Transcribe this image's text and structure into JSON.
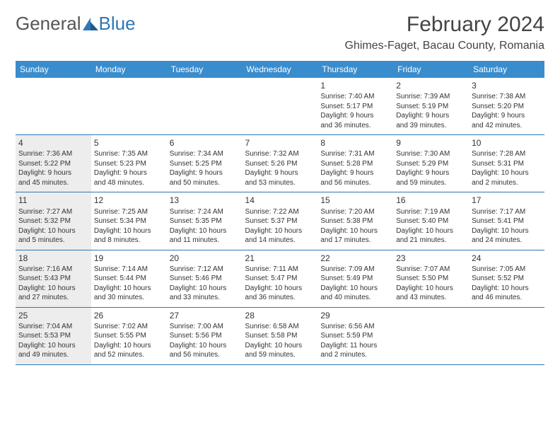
{
  "header": {
    "logo_general": "General",
    "logo_blue": "Blue",
    "month_title": "February 2024",
    "location": "Ghimes-Faget, Bacau County, Romania"
  },
  "colors": {
    "header_bg": "#3a8dcd",
    "border": "#2e77b8",
    "shaded": "#ededed",
    "text": "#333333"
  },
  "day_headers": [
    "Sunday",
    "Monday",
    "Tuesday",
    "Wednesday",
    "Thursday",
    "Friday",
    "Saturday"
  ],
  "weeks": [
    [
      null,
      null,
      null,
      null,
      {
        "num": "1",
        "sunrise": "Sunrise: 7:40 AM",
        "sunset": "Sunset: 5:17 PM",
        "day1": "Daylight: 9 hours",
        "day2": "and 36 minutes."
      },
      {
        "num": "2",
        "sunrise": "Sunrise: 7:39 AM",
        "sunset": "Sunset: 5:19 PM",
        "day1": "Daylight: 9 hours",
        "day2": "and 39 minutes."
      },
      {
        "num": "3",
        "sunrise": "Sunrise: 7:38 AM",
        "sunset": "Sunset: 5:20 PM",
        "day1": "Daylight: 9 hours",
        "day2": "and 42 minutes."
      }
    ],
    [
      {
        "num": "4",
        "sunrise": "Sunrise: 7:36 AM",
        "sunset": "Sunset: 5:22 PM",
        "day1": "Daylight: 9 hours",
        "day2": "and 45 minutes.",
        "shaded": true
      },
      {
        "num": "5",
        "sunrise": "Sunrise: 7:35 AM",
        "sunset": "Sunset: 5:23 PM",
        "day1": "Daylight: 9 hours",
        "day2": "and 48 minutes."
      },
      {
        "num": "6",
        "sunrise": "Sunrise: 7:34 AM",
        "sunset": "Sunset: 5:25 PM",
        "day1": "Daylight: 9 hours",
        "day2": "and 50 minutes."
      },
      {
        "num": "7",
        "sunrise": "Sunrise: 7:32 AM",
        "sunset": "Sunset: 5:26 PM",
        "day1": "Daylight: 9 hours",
        "day2": "and 53 minutes."
      },
      {
        "num": "8",
        "sunrise": "Sunrise: 7:31 AM",
        "sunset": "Sunset: 5:28 PM",
        "day1": "Daylight: 9 hours",
        "day2": "and 56 minutes."
      },
      {
        "num": "9",
        "sunrise": "Sunrise: 7:30 AM",
        "sunset": "Sunset: 5:29 PM",
        "day1": "Daylight: 9 hours",
        "day2": "and 59 minutes."
      },
      {
        "num": "10",
        "sunrise": "Sunrise: 7:28 AM",
        "sunset": "Sunset: 5:31 PM",
        "day1": "Daylight: 10 hours",
        "day2": "and 2 minutes."
      }
    ],
    [
      {
        "num": "11",
        "sunrise": "Sunrise: 7:27 AM",
        "sunset": "Sunset: 5:32 PM",
        "day1": "Daylight: 10 hours",
        "day2": "and 5 minutes.",
        "shaded": true
      },
      {
        "num": "12",
        "sunrise": "Sunrise: 7:25 AM",
        "sunset": "Sunset: 5:34 PM",
        "day1": "Daylight: 10 hours",
        "day2": "and 8 minutes."
      },
      {
        "num": "13",
        "sunrise": "Sunrise: 7:24 AM",
        "sunset": "Sunset: 5:35 PM",
        "day1": "Daylight: 10 hours",
        "day2": "and 11 minutes."
      },
      {
        "num": "14",
        "sunrise": "Sunrise: 7:22 AM",
        "sunset": "Sunset: 5:37 PM",
        "day1": "Daylight: 10 hours",
        "day2": "and 14 minutes."
      },
      {
        "num": "15",
        "sunrise": "Sunrise: 7:20 AM",
        "sunset": "Sunset: 5:38 PM",
        "day1": "Daylight: 10 hours",
        "day2": "and 17 minutes."
      },
      {
        "num": "16",
        "sunrise": "Sunrise: 7:19 AM",
        "sunset": "Sunset: 5:40 PM",
        "day1": "Daylight: 10 hours",
        "day2": "and 21 minutes."
      },
      {
        "num": "17",
        "sunrise": "Sunrise: 7:17 AM",
        "sunset": "Sunset: 5:41 PM",
        "day1": "Daylight: 10 hours",
        "day2": "and 24 minutes."
      }
    ],
    [
      {
        "num": "18",
        "sunrise": "Sunrise: 7:16 AM",
        "sunset": "Sunset: 5:43 PM",
        "day1": "Daylight: 10 hours",
        "day2": "and 27 minutes.",
        "shaded": true
      },
      {
        "num": "19",
        "sunrise": "Sunrise: 7:14 AM",
        "sunset": "Sunset: 5:44 PM",
        "day1": "Daylight: 10 hours",
        "day2": "and 30 minutes."
      },
      {
        "num": "20",
        "sunrise": "Sunrise: 7:12 AM",
        "sunset": "Sunset: 5:46 PM",
        "day1": "Daylight: 10 hours",
        "day2": "and 33 minutes."
      },
      {
        "num": "21",
        "sunrise": "Sunrise: 7:11 AM",
        "sunset": "Sunset: 5:47 PM",
        "day1": "Daylight: 10 hours",
        "day2": "and 36 minutes."
      },
      {
        "num": "22",
        "sunrise": "Sunrise: 7:09 AM",
        "sunset": "Sunset: 5:49 PM",
        "day1": "Daylight: 10 hours",
        "day2": "and 40 minutes."
      },
      {
        "num": "23",
        "sunrise": "Sunrise: 7:07 AM",
        "sunset": "Sunset: 5:50 PM",
        "day1": "Daylight: 10 hours",
        "day2": "and 43 minutes."
      },
      {
        "num": "24",
        "sunrise": "Sunrise: 7:05 AM",
        "sunset": "Sunset: 5:52 PM",
        "day1": "Daylight: 10 hours",
        "day2": "and 46 minutes."
      }
    ],
    [
      {
        "num": "25",
        "sunrise": "Sunrise: 7:04 AM",
        "sunset": "Sunset: 5:53 PM",
        "day1": "Daylight: 10 hours",
        "day2": "and 49 minutes.",
        "shaded": true
      },
      {
        "num": "26",
        "sunrise": "Sunrise: 7:02 AM",
        "sunset": "Sunset: 5:55 PM",
        "day1": "Daylight: 10 hours",
        "day2": "and 52 minutes."
      },
      {
        "num": "27",
        "sunrise": "Sunrise: 7:00 AM",
        "sunset": "Sunset: 5:56 PM",
        "day1": "Daylight: 10 hours",
        "day2": "and 56 minutes."
      },
      {
        "num": "28",
        "sunrise": "Sunrise: 6:58 AM",
        "sunset": "Sunset: 5:58 PM",
        "day1": "Daylight: 10 hours",
        "day2": "and 59 minutes."
      },
      {
        "num": "29",
        "sunrise": "Sunrise: 6:56 AM",
        "sunset": "Sunset: 5:59 PM",
        "day1": "Daylight: 11 hours",
        "day2": "and 2 minutes."
      },
      null,
      null
    ]
  ]
}
